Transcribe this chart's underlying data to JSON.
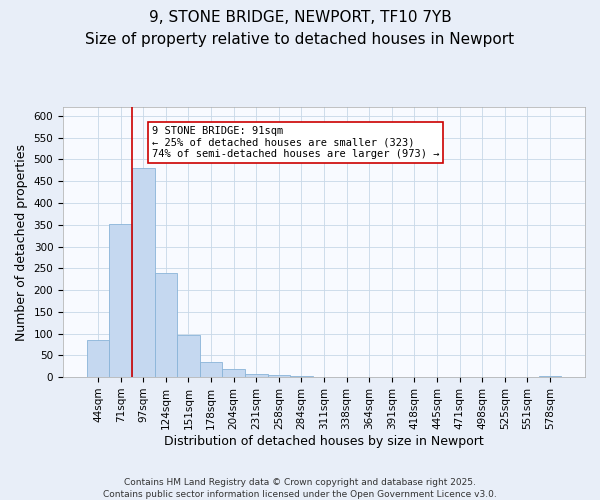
{
  "title": "9, STONE BRIDGE, NEWPORT, TF10 7YB",
  "subtitle": "Size of property relative to detached houses in Newport",
  "xlabel": "Distribution of detached houses by size in Newport",
  "ylabel": "Number of detached properties",
  "bar_labels": [
    "44sqm",
    "71sqm",
    "97sqm",
    "124sqm",
    "151sqm",
    "178sqm",
    "204sqm",
    "231sqm",
    "258sqm",
    "284sqm",
    "311sqm",
    "338sqm",
    "364sqm",
    "391sqm",
    "418sqm",
    "445sqm",
    "471sqm",
    "498sqm",
    "525sqm",
    "551sqm",
    "578sqm"
  ],
  "bar_values": [
    85,
    352,
    480,
    238,
    97,
    35,
    18,
    8,
    5,
    2,
    0,
    0,
    0,
    0,
    0,
    0,
    0,
    0,
    0,
    0,
    2
  ],
  "bar_color": "#c5d8f0",
  "bar_edge_color": "#8ab4d8",
  "vline_x_idx": 2,
  "vline_color": "#cc0000",
  "ylim": [
    0,
    620
  ],
  "yticks": [
    0,
    50,
    100,
    150,
    200,
    250,
    300,
    350,
    400,
    450,
    500,
    550,
    600
  ],
  "annotation_title": "9 STONE BRIDGE: 91sqm",
  "annotation_line1": "← 25% of detached houses are smaller (323)",
  "annotation_line2": "74% of semi-detached houses are larger (973) →",
  "footnote1": "Contains HM Land Registry data © Crown copyright and database right 2025.",
  "footnote2": "Contains public sector information licensed under the Open Government Licence v3.0.",
  "background_color": "#e8eef8",
  "plot_bg_color": "#f8faff",
  "grid_color": "#c8d8e8",
  "title_fontsize": 11,
  "subtitle_fontsize": 9.5,
  "axis_label_fontsize": 9,
  "tick_fontsize": 7.5,
  "annotation_fontsize": 7.5,
  "footnote_fontsize": 6.5
}
